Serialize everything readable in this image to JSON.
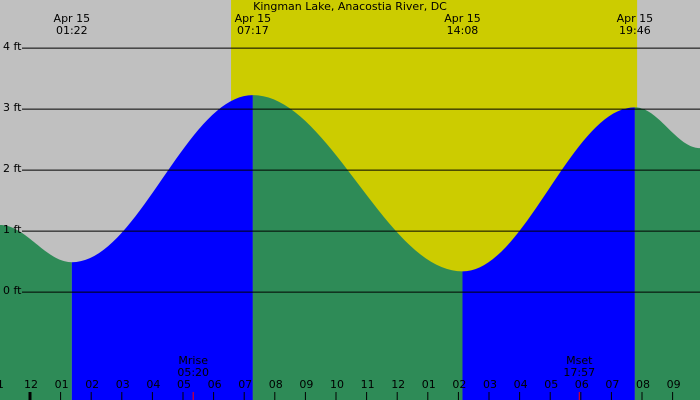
{
  "chart_data": {
    "type": "tide",
    "title": "Kingman Lake, Anacostia River, DC",
    "x": [
      -0.98,
      1.367,
      7.283,
      14.133,
      19.767,
      21.9
    ],
    "values": [
      1.1,
      0.49,
      3.23,
      0.34,
      3.03,
      2.36
    ],
    "rising_color": "#0000ff",
    "falling_color": "#2e8b57",
    "night_color": "#c0c0c0",
    "day_color": "#cccc00",
    "daylight": [
      6.57,
      19.84
    ],
    "xlim": [
      -0.98,
      21.895
    ],
    "ylim": [
      -1.77,
      4.79
    ],
    "yticks": [
      {
        "value": 0,
        "label": "0 ft"
      },
      {
        "value": 1,
        "label": "1 ft"
      },
      {
        "value": 2,
        "label": "2 ft"
      },
      {
        "value": 3,
        "label": "3 ft"
      },
      {
        "value": 4,
        "label": "4 ft"
      }
    ],
    "xticks": [
      {
        "value": -1,
        "label": "1"
      },
      {
        "value": 0,
        "label": "12"
      },
      {
        "value": 1,
        "label": "01"
      },
      {
        "value": 2,
        "label": "02"
      },
      {
        "value": 3,
        "label": "03"
      },
      {
        "value": 4,
        "label": "04"
      },
      {
        "value": 5,
        "label": "05"
      },
      {
        "value": 6,
        "label": "06"
      },
      {
        "value": 7,
        "label": "07"
      },
      {
        "value": 8,
        "label": "08"
      },
      {
        "value": 9,
        "label": "09"
      },
      {
        "value": 10,
        "label": "10"
      },
      {
        "value": 11,
        "label": "11"
      },
      {
        "value": 12,
        "label": "12"
      },
      {
        "value": 13,
        "label": "01"
      },
      {
        "value": 14,
        "label": "02"
      },
      {
        "value": 15,
        "label": "03"
      },
      {
        "value": 16,
        "label": "04"
      },
      {
        "value": 17,
        "label": "05"
      },
      {
        "value": 18,
        "label": "06"
      },
      {
        "value": 19,
        "label": "07"
      },
      {
        "value": 20,
        "label": "08"
      },
      {
        "value": 21,
        "label": "09"
      }
    ],
    "extremes": [
      {
        "date": "Apr 15",
        "time": "01:22",
        "x": 1.367
      },
      {
        "date": "Apr 15",
        "time": "07:17",
        "x": 7.283
      },
      {
        "date": "Apr 15",
        "time": "14:08",
        "x": 14.133
      },
      {
        "date": "Apr 15",
        "time": "19:46",
        "x": 19.767
      }
    ],
    "moon": [
      {
        "label": "Mrise",
        "time": "05:20",
        "x": 5.333
      },
      {
        "label": "Mset",
        "time": "17:57",
        "x": 17.95
      }
    ]
  }
}
